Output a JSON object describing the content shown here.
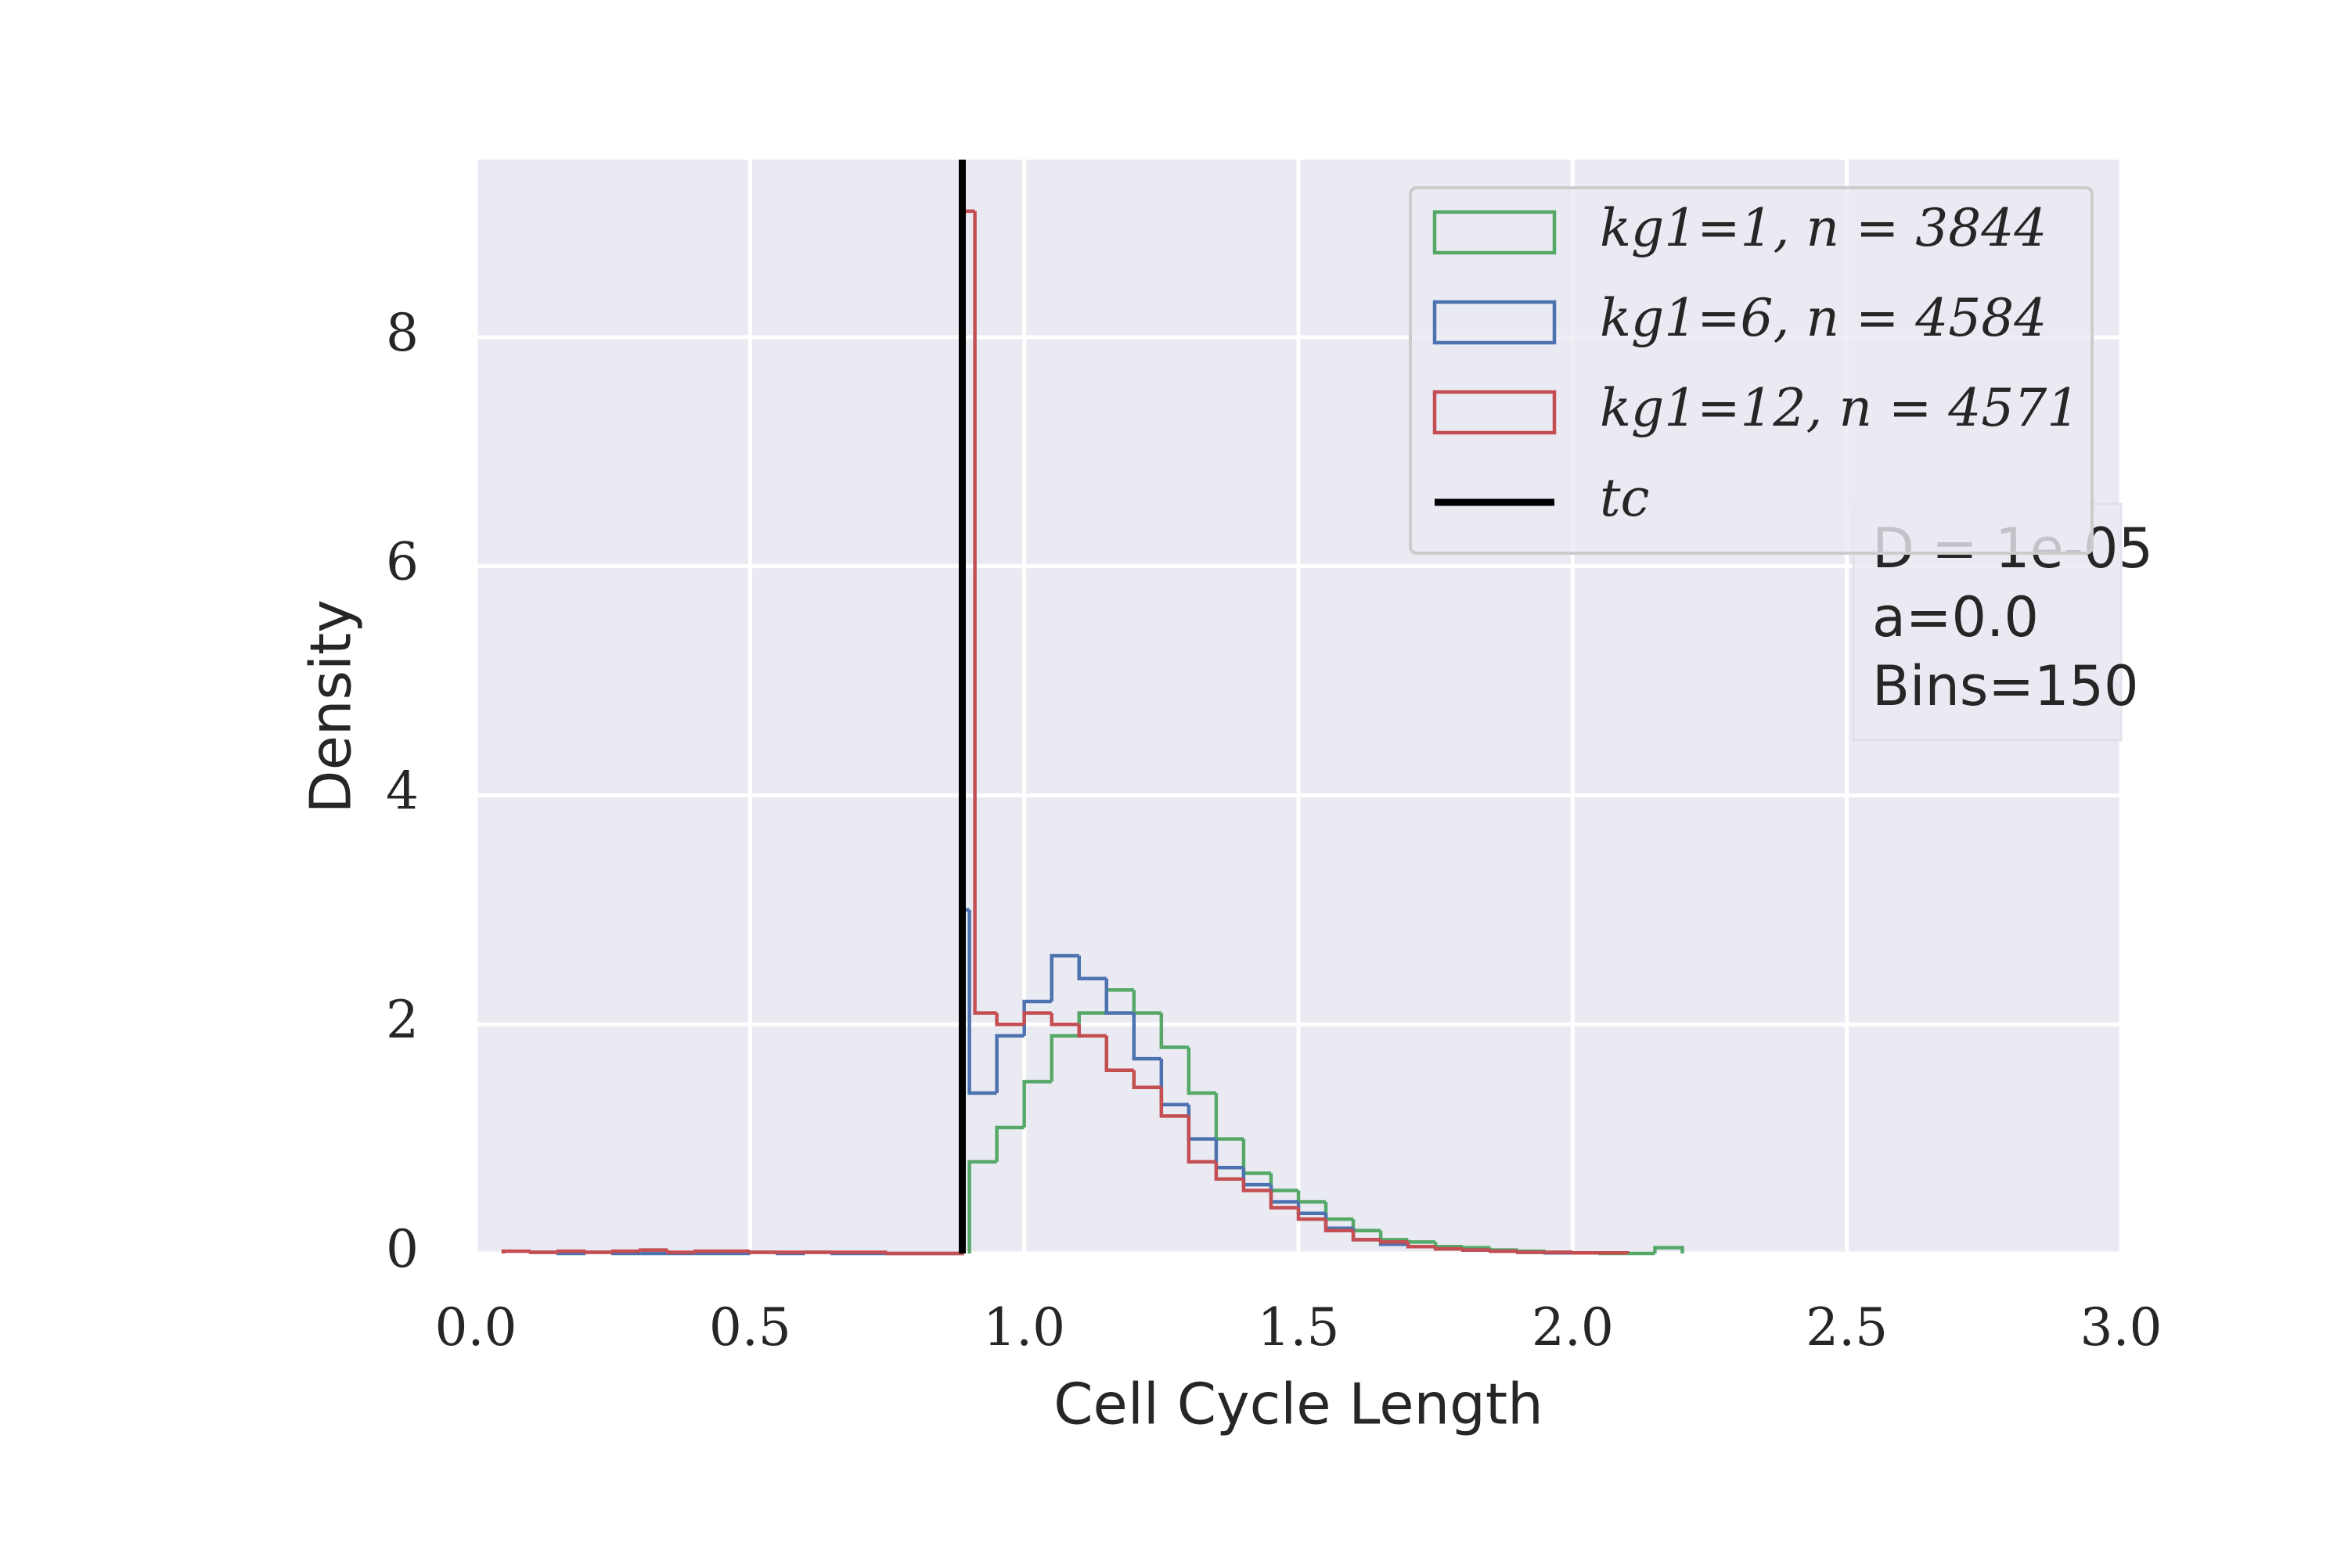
{
  "chart_data": {
    "type": "histogram",
    "xlabel": "Cell Cycle Length",
    "ylabel": "Density",
    "xlim": [
      0,
      3.0
    ],
    "ylim": [
      0,
      9.55
    ],
    "xticks": [
      {
        "value": 0,
        "label": "0.0"
      },
      0.5,
      {
        "value": 1,
        "label": "1.0"
      },
      1.5,
      {
        "value": 2,
        "label": "2.0"
      },
      2.5,
      {
        "value": 3,
        "label": "3.0"
      }
    ],
    "yticks": [
      0,
      2,
      4,
      6,
      8
    ],
    "grid": true,
    "legend_position": "upper right",
    "series": [
      {
        "name": "kg1=1, n = 3844",
        "color": "#55a868",
        "bins": [
          0.9,
          0.95,
          1.0,
          1.05,
          1.1,
          1.15,
          1.2,
          1.25,
          1.3,
          1.35,
          1.4,
          1.45,
          1.5,
          1.55,
          1.6,
          1.65,
          1.7,
          1.75,
          1.8,
          1.85,
          1.9,
          1.95,
          2.0,
          2.05,
          2.1,
          2.15,
          2.2
        ],
        "values": [
          0.8,
          1.1,
          1.5,
          1.9,
          2.1,
          2.3,
          2.1,
          1.8,
          1.4,
          1.0,
          0.7,
          0.55,
          0.45,
          0.3,
          0.2,
          0.12,
          0.1,
          0.06,
          0.05,
          0.03,
          0.02,
          0.01,
          0.005,
          0,
          0,
          0.05
        ]
      },
      {
        "name": "kg1=6, n = 4584",
        "color": "#4c72b0",
        "bins": [
          0.1,
          0.15,
          0.2,
          0.25,
          0.3,
          0.35,
          0.4,
          0.45,
          0.5,
          0.55,
          0.6,
          0.65,
          0.7,
          0.75,
          0.8,
          0.85,
          0.89,
          0.9,
          0.95,
          1.0,
          1.05,
          1.1,
          1.15,
          1.2,
          1.25,
          1.3,
          1.35,
          1.4,
          1.45,
          1.5,
          1.55,
          1.6,
          1.65,
          1.7,
          1.75,
          1.8,
          1.85,
          1.9,
          1.95,
          2.0
        ],
        "values": [
          0.01,
          0,
          0.01,
          0,
          0,
          0,
          0,
          0,
          0.01,
          0,
          0.01,
          0,
          0,
          0,
          0,
          0,
          3.0,
          1.4,
          1.9,
          2.2,
          2.6,
          2.4,
          2.1,
          1.7,
          1.3,
          1.0,
          0.75,
          0.6,
          0.45,
          0.35,
          0.22,
          0.12,
          0.08,
          0.06,
          0.04,
          0.03,
          0.02,
          0.01,
          0.005
        ]
      },
      {
        "name": "kg1=12, n = 4571",
        "color": "#c44e52",
        "bins": [
          0.05,
          0.1,
          0.15,
          0.2,
          0.25,
          0.3,
          0.35,
          0.4,
          0.45,
          0.5,
          0.55,
          0.6,
          0.65,
          0.7,
          0.75,
          0.8,
          0.85,
          0.89,
          0.91,
          0.95,
          1.0,
          1.05,
          1.1,
          1.15,
          1.2,
          1.25,
          1.3,
          1.35,
          1.4,
          1.45,
          1.5,
          1.55,
          1.6,
          1.65,
          1.7,
          1.75,
          1.8,
          1.85,
          1.9,
          1.95,
          2.0,
          2.05,
          2.1
        ],
        "values": [
          0.02,
          0.01,
          0.02,
          0.01,
          0.02,
          0.03,
          0.01,
          0.02,
          0.02,
          0.01,
          0.01,
          0.01,
          0.01,
          0.01,
          0,
          0,
          0,
          9.1,
          2.1,
          2.0,
          2.1,
          2.0,
          1.9,
          1.6,
          1.45,
          1.2,
          0.8,
          0.65,
          0.55,
          0.4,
          0.3,
          0.2,
          0.12,
          0.1,
          0.06,
          0.04,
          0.03,
          0.02,
          0.01,
          0.01,
          0.005,
          0.005
        ]
      }
    ],
    "vline": {
      "name": "tc",
      "x": 0.887,
      "color": "#000000"
    },
    "annotation": [
      "D = 1e-05",
      "a=0.0",
      "Bins=150"
    ]
  }
}
